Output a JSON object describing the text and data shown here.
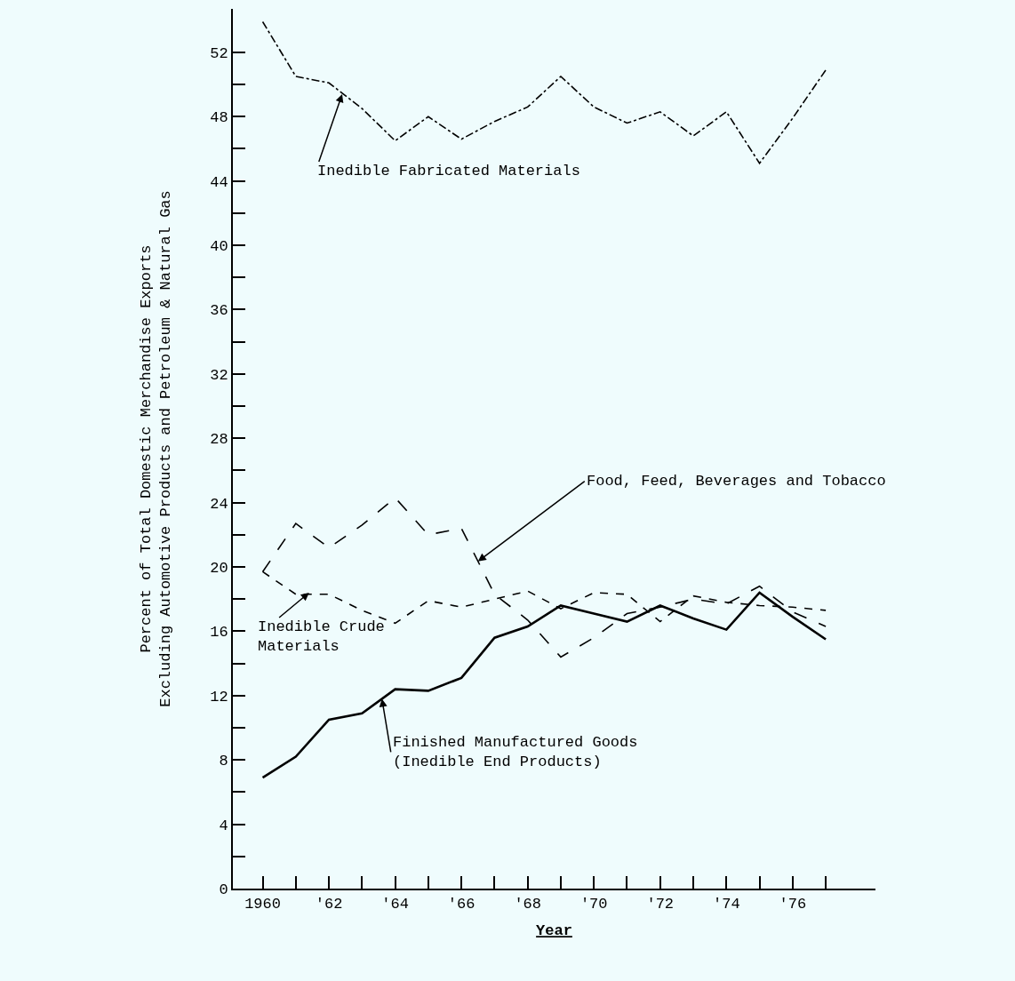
{
  "chart_data": {
    "type": "line",
    "xlabel": "Year",
    "ylabel": "Percent of Total Domestic Merchandise Exports\nExcluding Automotive Products and Petroleum & Natural Gas",
    "x": [
      1960,
      1961,
      1962,
      1963,
      1964,
      1965,
      1966,
      1967,
      1968,
      1969,
      1970,
      1971,
      1972,
      1973,
      1974,
      1975,
      1976,
      1977
    ],
    "series": [
      {
        "color": "#000000",
        "line_style": "dashdot",
        "values": [
          53.9,
          50.5,
          50.1,
          48.5,
          46.5,
          48.0,
          46.6,
          47.7,
          48.6,
          50.5,
          48.6,
          47.6,
          48.3,
          46.8,
          48.3,
          45.1,
          47.9,
          50.9
        ]
      },
      {
        "color": "#000000",
        "line_style": "longdash",
        "values": [
          19.7,
          22.7,
          21.2,
          22.6,
          24.3,
          22.0,
          22.4,
          18.3,
          16.7,
          14.4,
          15.6,
          17.1,
          17.5,
          18.0,
          17.7,
          18.8,
          17.2,
          16.3
        ]
      },
      {
        "color": "#000000",
        "line_style": "dashed",
        "values": [
          19.7,
          18.3,
          18.3,
          17.3,
          16.5,
          17.9,
          17.5,
          18.0,
          18.5,
          17.4,
          18.4,
          18.3,
          16.6,
          18.2,
          17.8,
          17.6,
          17.5,
          17.3
        ]
      },
      {
        "color": "#000000",
        "line_style": "solid",
        "values": [
          6.9,
          8.2,
          10.5,
          10.9,
          12.4,
          12.3,
          13.1,
          15.6,
          16.3,
          17.6,
          17.1,
          16.6,
          17.6,
          16.8,
          16.1,
          18.4,
          16.9,
          15.5
        ]
      }
    ],
    "annotations": [
      {
        "text": "Inedible Fabricated Materials",
        "x": 1962.4,
        "y": 49.4
      },
      {
        "text": "Food, Feed, Beverages and Tobacco",
        "x": 1966.5,
        "y": 20.35
      },
      {
        "text": "Inedible Crude\nMaterials",
        "x": 1961.4,
        "y": 18.4
      },
      {
        "text": "Finished Manufactured Goods\n(Inedible End Products)",
        "x": 1963.6,
        "y": 11.8
      }
    ],
    "xlim": [
      1959.1,
      1978.5
    ],
    "xticks": [
      {
        "value": 1960,
        "label": "1960"
      },
      {
        "value": 1961,
        "label": null
      },
      {
        "value": 1962,
        "label": "'62"
      },
      {
        "value": 1963,
        "label": null
      },
      {
        "value": 1964,
        "label": "'64"
      },
      {
        "value": 1965,
        "label": null
      },
      {
        "value": 1966,
        "label": "'66"
      },
      {
        "value": 1967,
        "label": null
      },
      {
        "value": 1968,
        "label": "'68"
      },
      {
        "value": 1969,
        "label": null
      },
      {
        "value": 1970,
        "label": "'70"
      },
      {
        "value": 1971,
        "label": null
      },
      {
        "value": 1972,
        "label": "'72"
      },
      {
        "value": 1973,
        "label": null
      },
      {
        "value": 1974,
        "label": "'74"
      },
      {
        "value": 1975,
        "label": null
      },
      {
        "value": 1976,
        "label": "'76"
      },
      {
        "value": 1977,
        "label": null
      }
    ],
    "ylim": [
      0,
      54.7
    ],
    "yticks": [
      0,
      {
        "value": 2,
        "label": null
      },
      4,
      {
        "value": 6,
        "label": null
      },
      8,
      {
        "value": 10,
        "label": null
      },
      12,
      {
        "value": 14,
        "label": null
      },
      16,
      {
        "value": 18,
        "label": null
      },
      20,
      {
        "value": 22,
        "label": null
      },
      24,
      {
        "value": 26,
        "label": null
      },
      28,
      {
        "value": 30,
        "label": null
      },
      32,
      {
        "value": 34,
        "label": null
      },
      36,
      {
        "value": 38,
        "label": null
      },
      40,
      {
        "value": 42,
        "label": null
      },
      44,
      {
        "value": 46,
        "label": null
      },
      48,
      {
        "value": 50,
        "label": null
      },
      52
    ],
    "grid": false,
    "marker": "none"
  }
}
